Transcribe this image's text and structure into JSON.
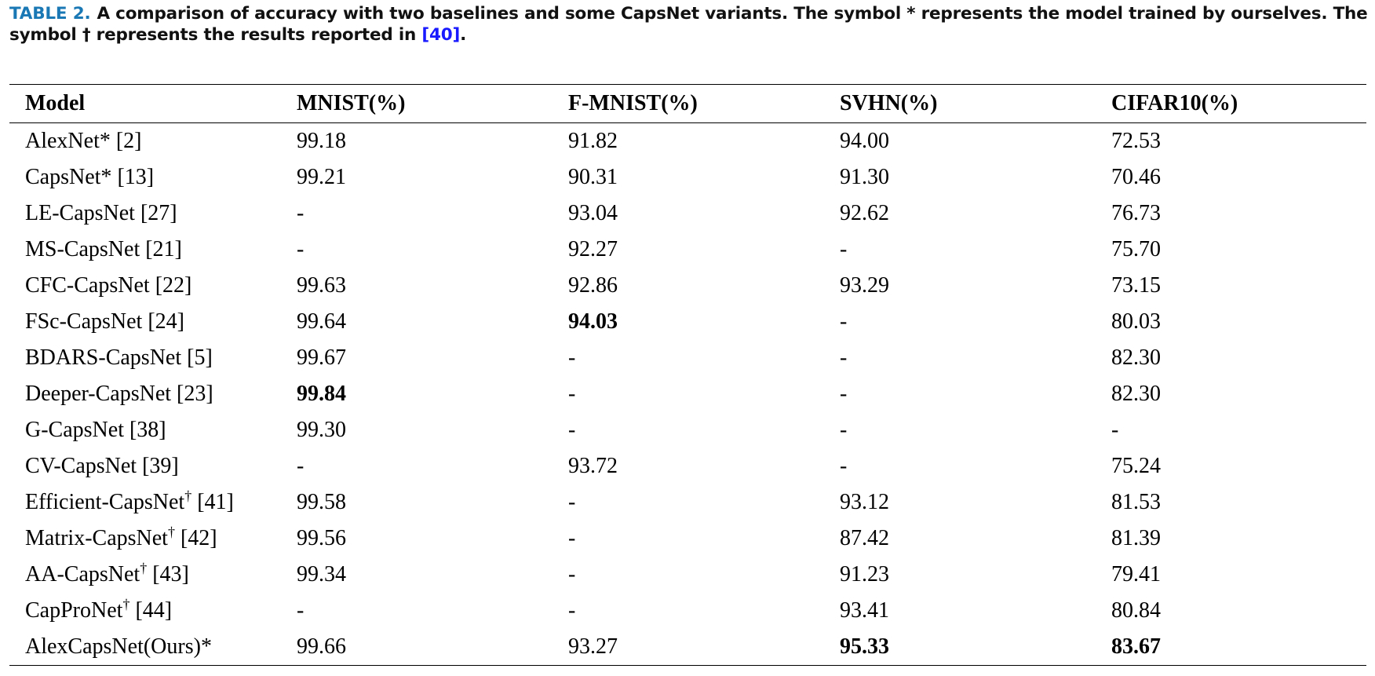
{
  "caption": {
    "label": "TABLE 2.",
    "text_before_ref": "A comparison of accuracy with two baselines and some CapsNet variants. The symbol * represents the model trained by ourselves. The symbol † represents the results reported in ",
    "ref": "[40]",
    "text_after_ref": "."
  },
  "table": {
    "headers": [
      "Model",
      "MNIST(%)",
      "F-MNIST(%)",
      "SVHN(%)",
      "CIFAR10(%)"
    ],
    "rows": [
      {
        "name": "AlexNet*",
        "dagger": "",
        "ref": " [2]",
        "values": [
          "99.18",
          "91.82",
          "94.00",
          "72.53"
        ],
        "bold": [
          false,
          false,
          false,
          false
        ]
      },
      {
        "name": "CapsNet*",
        "dagger": "",
        "ref": " [13]",
        "values": [
          "99.21",
          "90.31",
          "91.30",
          "70.46"
        ],
        "bold": [
          false,
          false,
          false,
          false
        ]
      },
      {
        "name": "LE-CapsNet",
        "dagger": "",
        "ref": " [27]",
        "values": [
          "-",
          "93.04",
          "92.62",
          "76.73"
        ],
        "bold": [
          false,
          false,
          false,
          false
        ]
      },
      {
        "name": "MS-CapsNet",
        "dagger": "",
        "ref": " [21]",
        "values": [
          "-",
          "92.27",
          "-",
          "75.70"
        ],
        "bold": [
          false,
          false,
          false,
          false
        ]
      },
      {
        "name": "CFC-CapsNet",
        "dagger": "",
        "ref": " [22]",
        "values": [
          "99.63",
          "92.86",
          "93.29",
          "73.15"
        ],
        "bold": [
          false,
          false,
          false,
          false
        ]
      },
      {
        "name": "FSc-CapsNet",
        "dagger": "",
        "ref": " [24]",
        "values": [
          "99.64",
          "94.03",
          "-",
          "80.03"
        ],
        "bold": [
          false,
          true,
          false,
          false
        ]
      },
      {
        "name": "BDARS-CapsNet",
        "dagger": "",
        "ref": " [5]",
        "values": [
          "99.67",
          "-",
          "-",
          "82.30"
        ],
        "bold": [
          false,
          false,
          false,
          false
        ]
      },
      {
        "name": "Deeper-CapsNet",
        "dagger": "",
        "ref": " [23]",
        "values": [
          "99.84",
          "-",
          "-",
          "82.30"
        ],
        "bold": [
          true,
          false,
          false,
          false
        ]
      },
      {
        "name": "G-CapsNet",
        "dagger": "",
        "ref": " [38]",
        "values": [
          "99.30",
          "-",
          "-",
          "-"
        ],
        "bold": [
          false,
          false,
          false,
          false
        ]
      },
      {
        "name": "CV-CapsNet",
        "dagger": "",
        "ref": " [39]",
        "values": [
          "-",
          "93.72",
          "-",
          "75.24"
        ],
        "bold": [
          false,
          false,
          false,
          false
        ]
      },
      {
        "name": "Efficient-CapsNet",
        "dagger": "†",
        "ref": " [41]",
        "values": [
          "99.58",
          "-",
          "93.12",
          "81.53"
        ],
        "bold": [
          false,
          false,
          false,
          false
        ]
      },
      {
        "name": "Matrix-CapsNet",
        "dagger": "†",
        "ref": " [42]",
        "values": [
          "99.56",
          "-",
          "87.42",
          "81.39"
        ],
        "bold": [
          false,
          false,
          false,
          false
        ]
      },
      {
        "name": "AA-CapsNet",
        "dagger": "†",
        "ref": " [43]",
        "values": [
          "99.34",
          "-",
          "91.23",
          "79.41"
        ],
        "bold": [
          false,
          false,
          false,
          false
        ]
      },
      {
        "name": "CapProNet",
        "dagger": "†",
        "ref": " [44]",
        "values": [
          "-",
          "-",
          "93.41",
          "80.84"
        ],
        "bold": [
          false,
          false,
          false,
          false
        ]
      },
      {
        "name": "AlexCapsNet(Ours)*",
        "dagger": "",
        "ref": "",
        "values": [
          "99.66",
          "93.27",
          "95.33",
          "83.67"
        ],
        "bold": [
          false,
          false,
          true,
          true
        ]
      }
    ]
  }
}
